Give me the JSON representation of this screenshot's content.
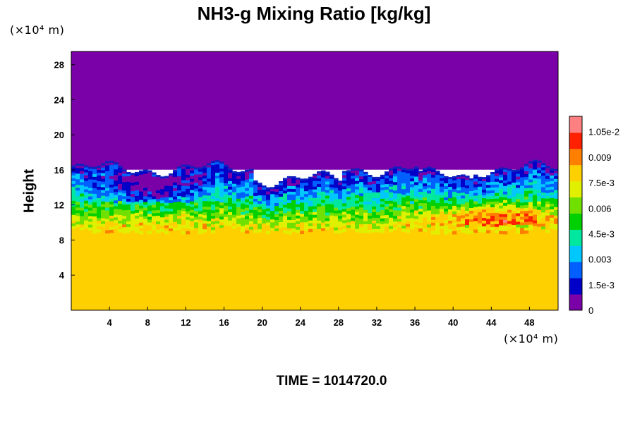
{
  "chart_data": {
    "type": "heatmap",
    "title": "NH3-g Mixing Ratio [kg/kg]",
    "ylabel": "Height",
    "xunit": "(×10⁴ m)",
    "yunit": "(×10⁴ m)",
    "x_ticks": [
      "4",
      "8",
      "12",
      "16",
      "20",
      "24",
      "28",
      "32",
      "36",
      "40",
      "44",
      "48"
    ],
    "y_ticks": [
      "4",
      "8",
      "12",
      "16",
      "20",
      "24",
      "28"
    ],
    "xlim": [
      0,
      51
    ],
    "ylim": [
      0,
      29.5
    ],
    "colorbar": {
      "labels": [
        "0",
        "1.5e-3",
        "0.003",
        "4.5e-3",
        "0.006",
        "7.5e-3",
        "0.009",
        "1.05e-2"
      ],
      "label_values": [
        0,
        0.0015,
        0.003,
        0.0045,
        0.006,
        0.0075,
        0.009,
        0.0105
      ],
      "range": [
        0,
        0.0114
      ]
    },
    "regions": [
      {
        "name": "upper",
        "y_range": [
          16.5,
          29.5
        ],
        "value": 0
      },
      {
        "name": "transition",
        "y_range": [
          9,
          16.5
        ],
        "value_range": [
          0.0015,
          0.0105
        ]
      },
      {
        "name": "lower",
        "y_range": [
          0,
          9
        ],
        "value": 0.0082
      }
    ],
    "time_label": "TIME = 1014720.0"
  }
}
